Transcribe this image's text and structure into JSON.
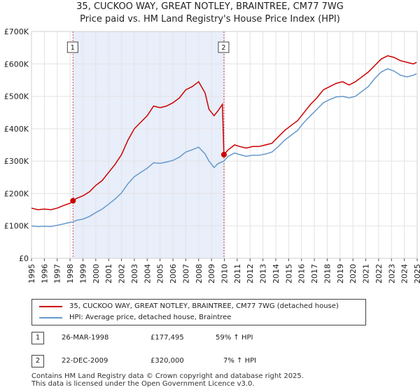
{
  "title_line1": "35, CUCKOO WAY, GREAT NOTLEY, BRAINTREE, CM77 7WG",
  "title_line2": "Price paid vs. HM Land Registry's House Price Index (HPI)",
  "chart_data": {
    "type": "line",
    "x_range": [
      1995,
      2025
    ],
    "ylim": [
      0,
      700000
    ],
    "y_ticks": [
      {
        "value": 0,
        "label": "£0"
      },
      {
        "value": 100000,
        "label": "£100K"
      },
      {
        "value": 200000,
        "label": "£200K"
      },
      {
        "value": 300000,
        "label": "£300K"
      },
      {
        "value": 400000,
        "label": "£400K"
      },
      {
        "value": 500000,
        "label": "£500K"
      },
      {
        "value": 600000,
        "label": "£600K"
      },
      {
        "value": 700000,
        "label": "£700K"
      }
    ],
    "x_ticks": [
      "1995",
      "1996",
      "1997",
      "1998",
      "1999",
      "2000",
      "2001",
      "2002",
      "2003",
      "2004",
      "2005",
      "2006",
      "2007",
      "2008",
      "2009",
      "2010",
      "2011",
      "2012",
      "2013",
      "2014",
      "2015",
      "2016",
      "2017",
      "2018",
      "2019",
      "2020",
      "2021",
      "2022",
      "2023",
      "2024",
      "2025"
    ],
    "shaded_region": [
      1998.23,
      2009.97
    ],
    "colors": {
      "property": "#cc0000",
      "hpi": "#6699cc",
      "shade": "#e8eefa",
      "marker": "#cc0000",
      "vline": "#dd4444"
    },
    "series": [
      {
        "name": "35, CUCKOO WAY, GREAT NOTLEY, BRAINTREE, CM77 7WG (detached house)",
        "points": [
          [
            1995.0,
            155000
          ],
          [
            1995.5,
            150000
          ],
          [
            1996.0,
            152000
          ],
          [
            1996.5,
            150000
          ],
          [
            1997.0,
            155000
          ],
          [
            1997.5,
            163000
          ],
          [
            1998.0,
            170000
          ],
          [
            1998.23,
            177495
          ],
          [
            1998.5,
            185000
          ],
          [
            1999.0,
            193000
          ],
          [
            1999.5,
            205000
          ],
          [
            2000.0,
            225000
          ],
          [
            2000.5,
            240000
          ],
          [
            2001.0,
            265000
          ],
          [
            2001.5,
            290000
          ],
          [
            2002.0,
            320000
          ],
          [
            2002.5,
            365000
          ],
          [
            2003.0,
            400000
          ],
          [
            2003.5,
            420000
          ],
          [
            2004.0,
            440000
          ],
          [
            2004.5,
            470000
          ],
          [
            2005.0,
            465000
          ],
          [
            2005.5,
            470000
          ],
          [
            2006.0,
            480000
          ],
          [
            2006.5,
            495000
          ],
          [
            2007.0,
            520000
          ],
          [
            2007.5,
            530000
          ],
          [
            2008.0,
            545000
          ],
          [
            2008.5,
            510000
          ],
          [
            2008.8,
            460000
          ],
          [
            2009.2,
            440000
          ],
          [
            2009.5,
            455000
          ],
          [
            2009.85,
            475000
          ],
          [
            2009.97,
            320000
          ],
          [
            2010.3,
            335000
          ],
          [
            2010.8,
            350000
          ],
          [
            2011.2,
            345000
          ],
          [
            2011.7,
            340000
          ],
          [
            2012.2,
            345000
          ],
          [
            2012.7,
            345000
          ],
          [
            2013.2,
            350000
          ],
          [
            2013.7,
            355000
          ],
          [
            2014.2,
            375000
          ],
          [
            2014.7,
            395000
          ],
          [
            2015.2,
            410000
          ],
          [
            2015.7,
            425000
          ],
          [
            2016.2,
            450000
          ],
          [
            2016.7,
            475000
          ],
          [
            2017.2,
            495000
          ],
          [
            2017.7,
            520000
          ],
          [
            2018.2,
            530000
          ],
          [
            2018.7,
            540000
          ],
          [
            2019.2,
            545000
          ],
          [
            2019.7,
            535000
          ],
          [
            2020.2,
            545000
          ],
          [
            2020.7,
            560000
          ],
          [
            2021.2,
            575000
          ],
          [
            2021.7,
            595000
          ],
          [
            2022.2,
            615000
          ],
          [
            2022.7,
            625000
          ],
          [
            2023.2,
            620000
          ],
          [
            2023.7,
            610000
          ],
          [
            2024.2,
            605000
          ],
          [
            2024.7,
            600000
          ],
          [
            2024.95,
            605000
          ]
        ]
      },
      {
        "name": "HPI: Average price, detached house, Braintree",
        "points": [
          [
            1995.0,
            100000
          ],
          [
            1995.5,
            98000
          ],
          [
            1996.0,
            99000
          ],
          [
            1996.5,
            98000
          ],
          [
            1997.0,
            102000
          ],
          [
            1997.5,
            106000
          ],
          [
            1998.0,
            111000
          ],
          [
            1998.23,
            112000
          ],
          [
            1998.5,
            117000
          ],
          [
            1999.0,
            121000
          ],
          [
            1999.5,
            129000
          ],
          [
            2000.0,
            141000
          ],
          [
            2000.5,
            152000
          ],
          [
            2001.0,
            167000
          ],
          [
            2001.5,
            183000
          ],
          [
            2002.0,
            202000
          ],
          [
            2002.5,
            230000
          ],
          [
            2003.0,
            252000
          ],
          [
            2003.5,
            265000
          ],
          [
            2004.0,
            278000
          ],
          [
            2004.5,
            295000
          ],
          [
            2005.0,
            293000
          ],
          [
            2005.5,
            297000
          ],
          [
            2006.0,
            302000
          ],
          [
            2006.5,
            312000
          ],
          [
            2007.0,
            328000
          ],
          [
            2007.5,
            335000
          ],
          [
            2008.0,
            343000
          ],
          [
            2008.5,
            322000
          ],
          [
            2008.8,
            300000
          ],
          [
            2009.2,
            280000
          ],
          [
            2009.5,
            292000
          ],
          [
            2009.97,
            300000
          ],
          [
            2010.3,
            315000
          ],
          [
            2010.8,
            325000
          ],
          [
            2011.2,
            320000
          ],
          [
            2011.7,
            315000
          ],
          [
            2012.2,
            318000
          ],
          [
            2012.7,
            318000
          ],
          [
            2013.2,
            322000
          ],
          [
            2013.7,
            328000
          ],
          [
            2014.2,
            345000
          ],
          [
            2014.7,
            365000
          ],
          [
            2015.2,
            380000
          ],
          [
            2015.7,
            395000
          ],
          [
            2016.2,
            420000
          ],
          [
            2016.7,
            440000
          ],
          [
            2017.2,
            460000
          ],
          [
            2017.7,
            480000
          ],
          [
            2018.2,
            490000
          ],
          [
            2018.7,
            498000
          ],
          [
            2019.2,
            500000
          ],
          [
            2019.7,
            495000
          ],
          [
            2020.2,
            500000
          ],
          [
            2020.7,
            515000
          ],
          [
            2021.2,
            530000
          ],
          [
            2021.7,
            555000
          ],
          [
            2022.2,
            575000
          ],
          [
            2022.7,
            585000
          ],
          [
            2023.2,
            578000
          ],
          [
            2023.7,
            565000
          ],
          [
            2024.2,
            560000
          ],
          [
            2024.7,
            565000
          ],
          [
            2024.95,
            570000
          ]
        ]
      }
    ],
    "sales": [
      {
        "label": "1",
        "x": 1998.23,
        "y": 177495
      },
      {
        "label": "2",
        "x": 2009.97,
        "y": 320000
      }
    ]
  },
  "legend": {
    "property": "35, CUCKOO WAY, GREAT NOTLEY, BRAINTREE, CM77 7WG (detached house)",
    "hpi": "HPI: Average price, detached house, Braintree"
  },
  "sales_table": [
    {
      "num": "1",
      "date": "26-MAR-1998",
      "price": "£177,495",
      "hpi": "59% ↑ HPI"
    },
    {
      "num": "2",
      "date": "22-DEC-2009",
      "price": "£320,000",
      "hpi": "7% ↑ HPI"
    }
  ],
  "footer": {
    "line1": "Contains HM Land Registry data © Crown copyright and database right 2025.",
    "line2": "This data is licensed under the Open Government Licence v3.0."
  }
}
